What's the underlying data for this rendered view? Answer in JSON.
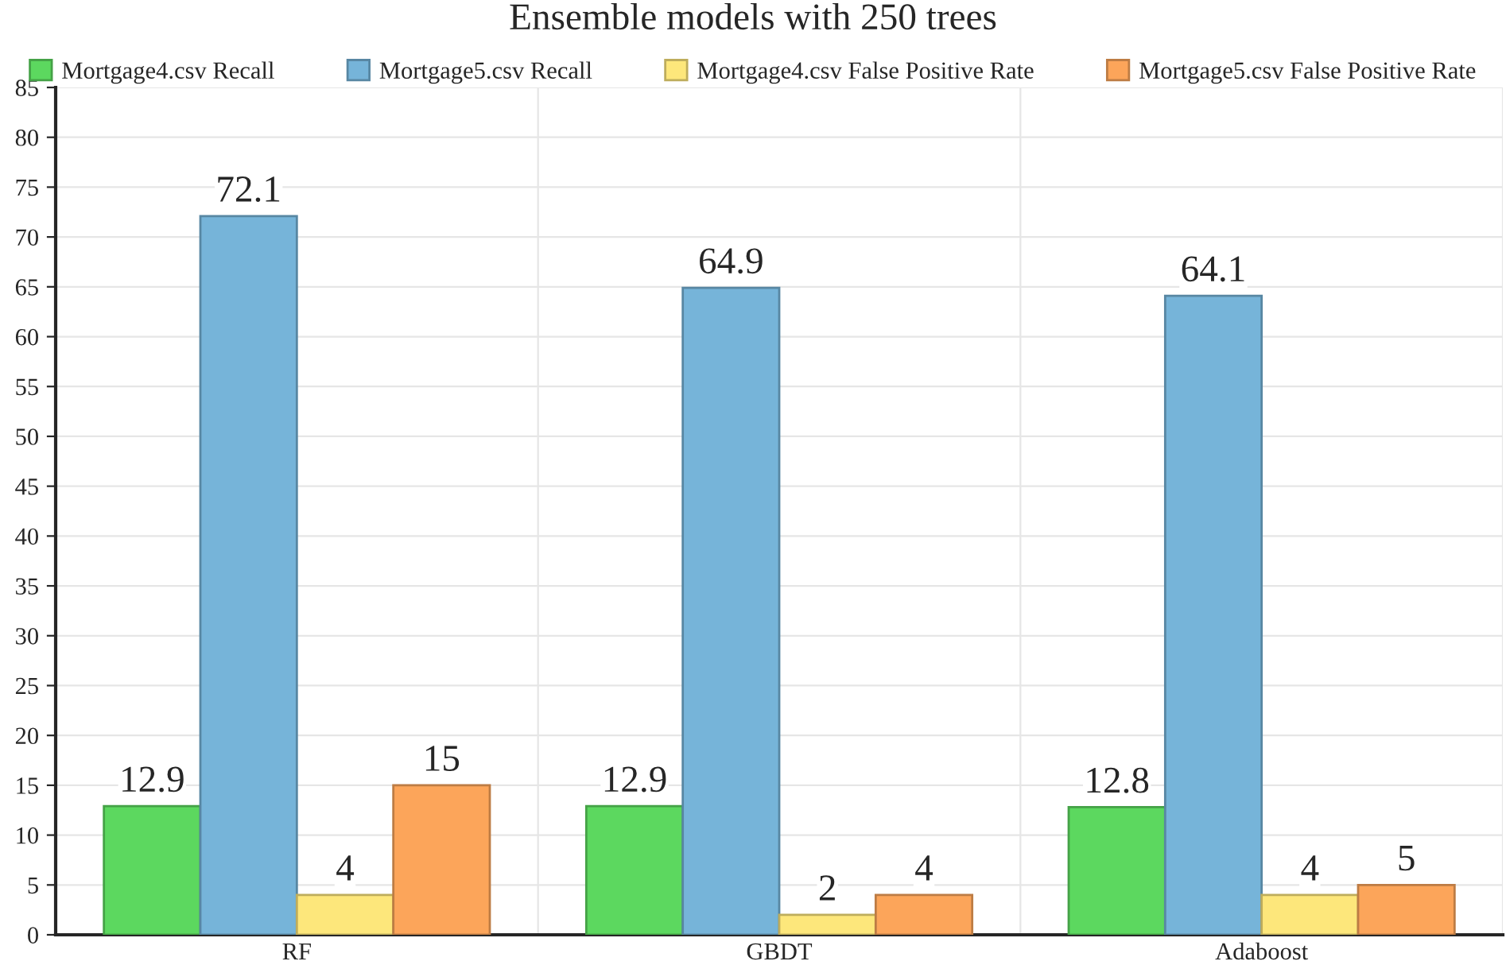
{
  "chart_data": {
    "type": "bar",
    "title": "Ensemble models with 250 trees",
    "categories": [
      "RF",
      "GBDT",
      "Adaboost"
    ],
    "series": [
      {
        "name": "Mortgage4.csv Recall",
        "color": "#5cd85f",
        "values": [
          12.9,
          12.9,
          12.8
        ]
      },
      {
        "name": "Mortgage5.csv Recall",
        "color": "#76b4d9",
        "values": [
          72.1,
          64.9,
          64.1
        ]
      },
      {
        "name": "Mortgage4.csv False Positive Rate",
        "color": "#fde77b",
        "values": [
          4,
          2,
          4
        ]
      },
      {
        "name": "Mortgage5.csv False Positive Rate",
        "color": "#fca55a",
        "values": [
          15,
          4,
          5
        ]
      }
    ],
    "ylim": [
      0,
      85
    ],
    "yticks": [
      0,
      5,
      10,
      15,
      20,
      25,
      30,
      35,
      40,
      45,
      50,
      55,
      60,
      65,
      70,
      75,
      80,
      85
    ],
    "grid": true,
    "legend": "top",
    "data_labels": true
  }
}
